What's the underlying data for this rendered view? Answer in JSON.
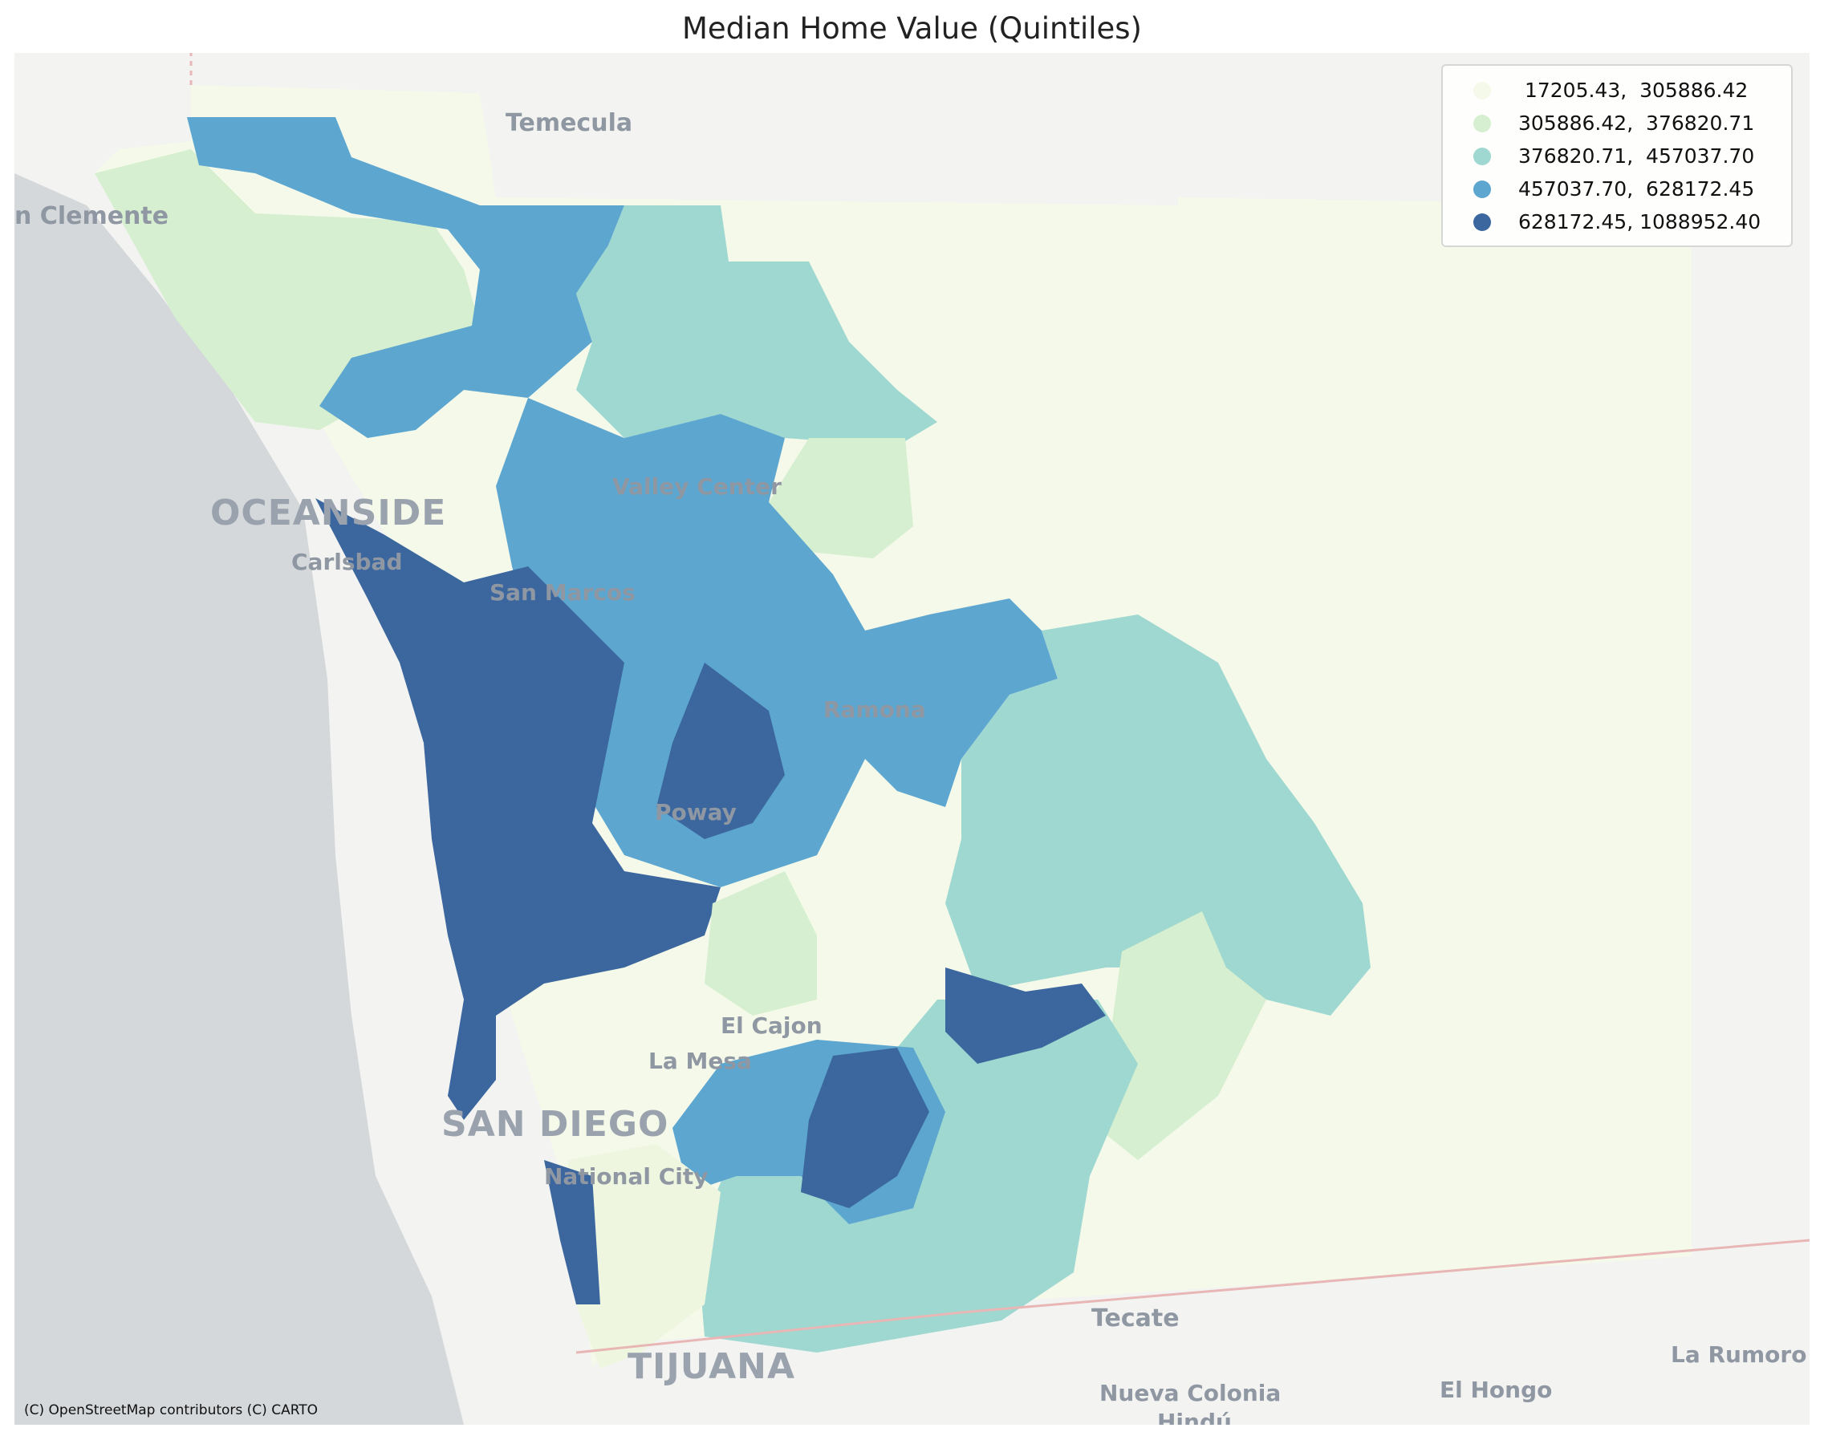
{
  "title": "Median Home Value (Quintiles)",
  "legend": {
    "entries": [
      {
        "label": " 17205.43,  305886.42",
        "color": "#f4f9ea"
      },
      {
        "label": "305886.42,  376820.71",
        "color": "#d6efd0"
      },
      {
        "label": "376820.71,  457037.70",
        "color": "#9ed8d0"
      },
      {
        "label": "457037.70,  628172.45",
        "color": "#5ca6cf"
      },
      {
        "label": "628172.45, 1088952.40",
        "color": "#3b679e"
      }
    ]
  },
  "places": {
    "temecula": "Temecula",
    "san_clemente": "n Clemente",
    "oceanside": "OCEANSIDE",
    "carlsbad": "Carlsbad",
    "valley_center": "Valley Center",
    "san_marcos": "San Marcos",
    "ramona": "Ramona",
    "poway": "Poway",
    "el_cajon": "El Cajon",
    "la_mesa": "La Mesa",
    "san_diego": "SAN DIEGO",
    "national_city": "National City",
    "tijuana": "TIJUANA",
    "tecate": "Tecate",
    "nueva_colonia": "Nueva Colonia",
    "hindu": "Hindú",
    "el_hongo": "El Hongo",
    "la_rumorosa": "La Rumoro"
  },
  "attribution": "(C) OpenStreetMap contributors (C) CARTO"
}
